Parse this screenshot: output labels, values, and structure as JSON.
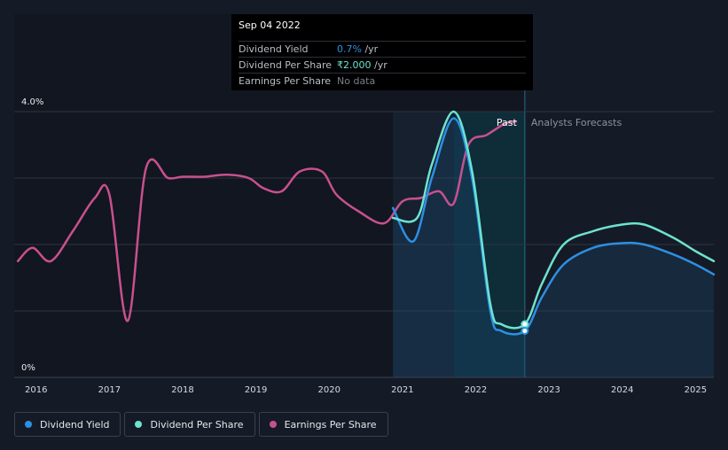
{
  "tooltip": {
    "date": "Sep 04 2022",
    "rows": [
      {
        "label": "Dividend Yield",
        "value": "0.7%",
        "unit": " /yr",
        "color": "#2d8fe3"
      },
      {
        "label": "Dividend Per Share",
        "value": "₹2.000",
        "unit": " /yr",
        "color": "#6de3cf"
      },
      {
        "label": "Earnings Per Share",
        "value": "No data",
        "unit": "",
        "color": "#7a7f88"
      }
    ]
  },
  "legend": [
    {
      "label": "Dividend Yield",
      "color": "#2d8fe3"
    },
    {
      "label": "Dividend Per Share",
      "color": "#6de3cf"
    },
    {
      "label": "Earnings Per Share",
      "color": "#c8508e"
    }
  ],
  "chart_data": {
    "type": "line",
    "title": "",
    "xlabel": "",
    "ylabel": "",
    "x_ticks": [
      "2016",
      "2017",
      "2018",
      "2019",
      "2020",
      "2021",
      "2022",
      "2023",
      "2024",
      "2025"
    ],
    "xlim": [
      2015.7,
      2025.25
    ],
    "y_axis_labels": [
      "4.0%",
      "0%"
    ],
    "ylim": [
      0,
      4.0
    ],
    "section_labels": {
      "past": "Past",
      "forecast": "Analysts Forecasts"
    },
    "past_cutoff": 2022.67,
    "series": [
      {
        "name": "Earnings Per Share",
        "color": "#c8508e",
        "points": [
          [
            2015.75,
            1.75
          ],
          [
            2015.95,
            1.95
          ],
          [
            2016.2,
            1.75
          ],
          [
            2016.5,
            2.2
          ],
          [
            2016.8,
            2.7
          ],
          [
            2017.0,
            2.75
          ],
          [
            2017.25,
            0.85
          ],
          [
            2017.5,
            3.15
          ],
          [
            2017.8,
            3.0
          ],
          [
            2018.0,
            3.02
          ],
          [
            2018.3,
            3.02
          ],
          [
            2018.6,
            3.05
          ],
          [
            2018.9,
            3.0
          ],
          [
            2019.1,
            2.85
          ],
          [
            2019.35,
            2.8
          ],
          [
            2019.6,
            3.1
          ],
          [
            2019.9,
            3.1
          ],
          [
            2020.1,
            2.75
          ],
          [
            2020.4,
            2.5
          ],
          [
            2020.75,
            2.32
          ],
          [
            2021.0,
            2.65
          ],
          [
            2021.25,
            2.7
          ],
          [
            2021.5,
            2.8
          ],
          [
            2021.7,
            2.62
          ],
          [
            2021.9,
            3.5
          ],
          [
            2022.15,
            3.65
          ],
          [
            2022.4,
            3.82
          ],
          [
            2022.55,
            3.85
          ]
        ]
      },
      {
        "name": "Dividend Yield",
        "color": "#2d8fe3",
        "points": [
          [
            2020.87,
            2.55
          ],
          [
            2021.15,
            2.05
          ],
          [
            2021.4,
            3.0
          ],
          [
            2021.7,
            3.9
          ],
          [
            2021.95,
            3.0
          ],
          [
            2022.2,
            1.0
          ],
          [
            2022.35,
            0.7
          ],
          [
            2022.67,
            0.7
          ],
          [
            2022.9,
            1.2
          ],
          [
            2023.2,
            1.7
          ],
          [
            2023.6,
            1.95
          ],
          [
            2024.0,
            2.02
          ],
          [
            2024.3,
            2.0
          ],
          [
            2024.7,
            1.85
          ],
          [
            2025.0,
            1.7
          ],
          [
            2025.25,
            1.55
          ]
        ]
      },
      {
        "name": "Dividend Per Share",
        "color": "#6de3cf",
        "points": [
          [
            2020.87,
            2.4
          ],
          [
            2021.2,
            2.4
          ],
          [
            2021.4,
            3.2
          ],
          [
            2021.7,
            4.0
          ],
          [
            2021.95,
            3.1
          ],
          [
            2022.2,
            1.1
          ],
          [
            2022.35,
            0.8
          ],
          [
            2022.67,
            0.8
          ],
          [
            2022.9,
            1.4
          ],
          [
            2023.2,
            2.0
          ],
          [
            2023.6,
            2.2
          ],
          [
            2024.0,
            2.3
          ],
          [
            2024.3,
            2.3
          ],
          [
            2024.7,
            2.1
          ],
          [
            2025.0,
            1.9
          ],
          [
            2025.25,
            1.75
          ]
        ]
      }
    ],
    "highlight_point": {
      "x": 2022.67
    }
  }
}
